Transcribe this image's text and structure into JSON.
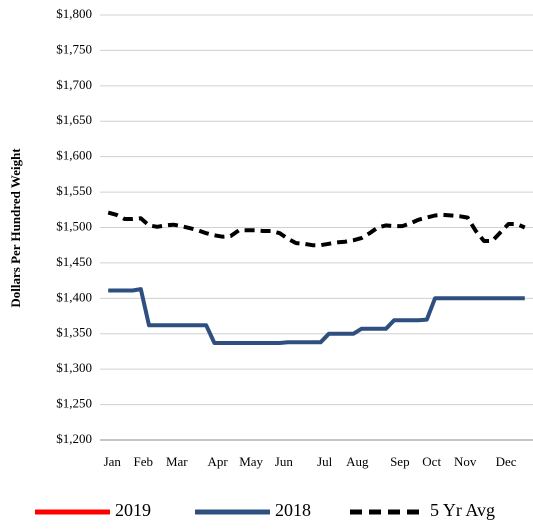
{
  "chart_data": {
    "type": "line",
    "ylabel": "Dollars Per Hundred Weight",
    "x": [
      1,
      2,
      3,
      4,
      5,
      6,
      7,
      8,
      9,
      10,
      11,
      12,
      13,
      14,
      15,
      16,
      17,
      18,
      19,
      20,
      21,
      22,
      23,
      24,
      25,
      26,
      27,
      28,
      29,
      30,
      31,
      32,
      33,
      34,
      35,
      36,
      37,
      38,
      39,
      40,
      41,
      42,
      43,
      44,
      45,
      46,
      47,
      48,
      49,
      50,
      51,
      52
    ],
    "xlim": [
      0,
      53
    ],
    "xticks": [
      {
        "value": 1.5,
        "label": "Jan"
      },
      {
        "value": 5.3,
        "label": "Feb"
      },
      {
        "value": 9.4,
        "label": "Mar"
      },
      {
        "value": 14.4,
        "label": "Apr"
      },
      {
        "value": 18.5,
        "label": "May"
      },
      {
        "value": 22.5,
        "label": "Jun"
      },
      {
        "value": 27.5,
        "label": "Jul"
      },
      {
        "value": 31.5,
        "label": "Aug"
      },
      {
        "value": 36.7,
        "label": "Sep"
      },
      {
        "value": 40.6,
        "label": "Oct"
      },
      {
        "value": 44.7,
        "label": "Nov"
      },
      {
        "value": 49.7,
        "label": "Dec"
      }
    ],
    "ylim": [
      1200,
      1800
    ],
    "yticks": [
      {
        "value": 1200,
        "label": "$1,200"
      },
      {
        "value": 1250,
        "label": "$1,250"
      },
      {
        "value": 1300,
        "label": "$1,300"
      },
      {
        "value": 1350,
        "label": "$1,350"
      },
      {
        "value": 1400,
        "label": "$1,400"
      },
      {
        "value": 1450,
        "label": "$1,450"
      },
      {
        "value": 1500,
        "label": "$1,500"
      },
      {
        "value": 1550,
        "label": "$1,550"
      },
      {
        "value": 1600,
        "label": "$1,600"
      },
      {
        "value": 1650,
        "label": "$1,650"
      },
      {
        "value": 1700,
        "label": "$1,700"
      },
      {
        "value": 1750,
        "label": "$1,750"
      },
      {
        "value": 1800,
        "label": "$1,800"
      }
    ],
    "grid": true,
    "legend": "bottom",
    "series": [
      {
        "name": "2019",
        "color": "#ff0000",
        "dash": false,
        "values": [
          null,
          null,
          null,
          null,
          null,
          null,
          null,
          null,
          null,
          null,
          null,
          null,
          null,
          null,
          null,
          null,
          null,
          null,
          null,
          null,
          null,
          null,
          null,
          null,
          null,
          null,
          null,
          null,
          null,
          null,
          null,
          null,
          null,
          null,
          null,
          null,
          null,
          null,
          null,
          null,
          null,
          null,
          null,
          null,
          null,
          null,
          null,
          null,
          null,
          null,
          null,
          null
        ]
      },
      {
        "name": "2018",
        "color": "#2e4f7f",
        "dash": false,
        "values": [
          1411,
          1411,
          1411,
          1411,
          1413,
          1362,
          1362,
          1362,
          1362,
          1362,
          1362,
          1362,
          1362,
          1337,
          1337,
          1337,
          1337,
          1337,
          1337,
          1337,
          1337,
          1337,
          1338,
          1338,
          1338,
          1338,
          1338,
          1350,
          1350,
          1350,
          1350,
          1357,
          1357,
          1357,
          1357,
          1369,
          1369,
          1369,
          1369,
          1370,
          1400,
          1400,
          1400,
          1400,
          1400,
          1400,
          1400,
          1400,
          1400,
          1400,
          1400,
          1400
        ]
      },
      {
        "name": "5 Yr Avg",
        "color": "#000000",
        "dash": true,
        "values": [
          1521,
          1518,
          1512,
          1512,
          1513,
          1503,
          1501,
          1503,
          1504,
          1502,
          1499,
          1496,
          1492,
          1489,
          1487,
          1488,
          1496,
          1496,
          1496,
          1495,
          1495,
          1492,
          1484,
          1478,
          1477,
          1475,
          1475,
          1477,
          1479,
          1480,
          1482,
          1485,
          1492,
          1500,
          1503,
          1502,
          1502,
          1506,
          1511,
          1514,
          1517,
          1518,
          1517,
          1516,
          1514,
          1495,
          1481,
          1481,
          1493,
          1505,
          1505,
          1500
        ]
      }
    ]
  }
}
